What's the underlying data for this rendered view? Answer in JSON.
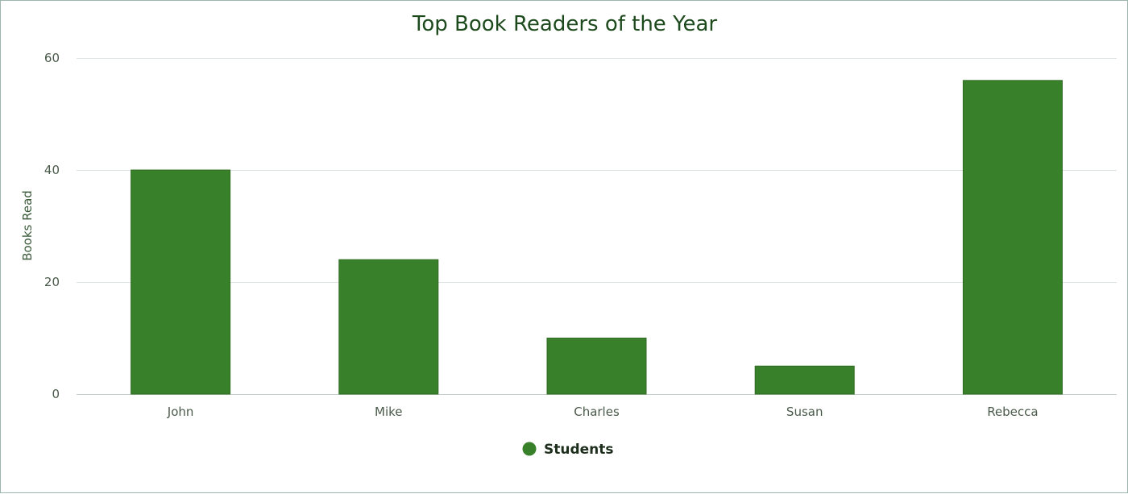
{
  "chart_data": {
    "type": "bar",
    "title": "Top Book Readers of the Year",
    "ylabel": "Books Read",
    "xlabel": "",
    "categories": [
      "John",
      "Mike",
      "Charles",
      "Susan",
      "Rebecca"
    ],
    "series": [
      {
        "name": "Students",
        "values": [
          40,
          24,
          10,
          5,
          56
        ],
        "color": "#38802a"
      }
    ],
    "ylim": [
      0,
      60
    ],
    "yticks": [
      "0",
      "20",
      "40",
      "60"
    ],
    "grid": true,
    "legend_position": "bottom"
  }
}
